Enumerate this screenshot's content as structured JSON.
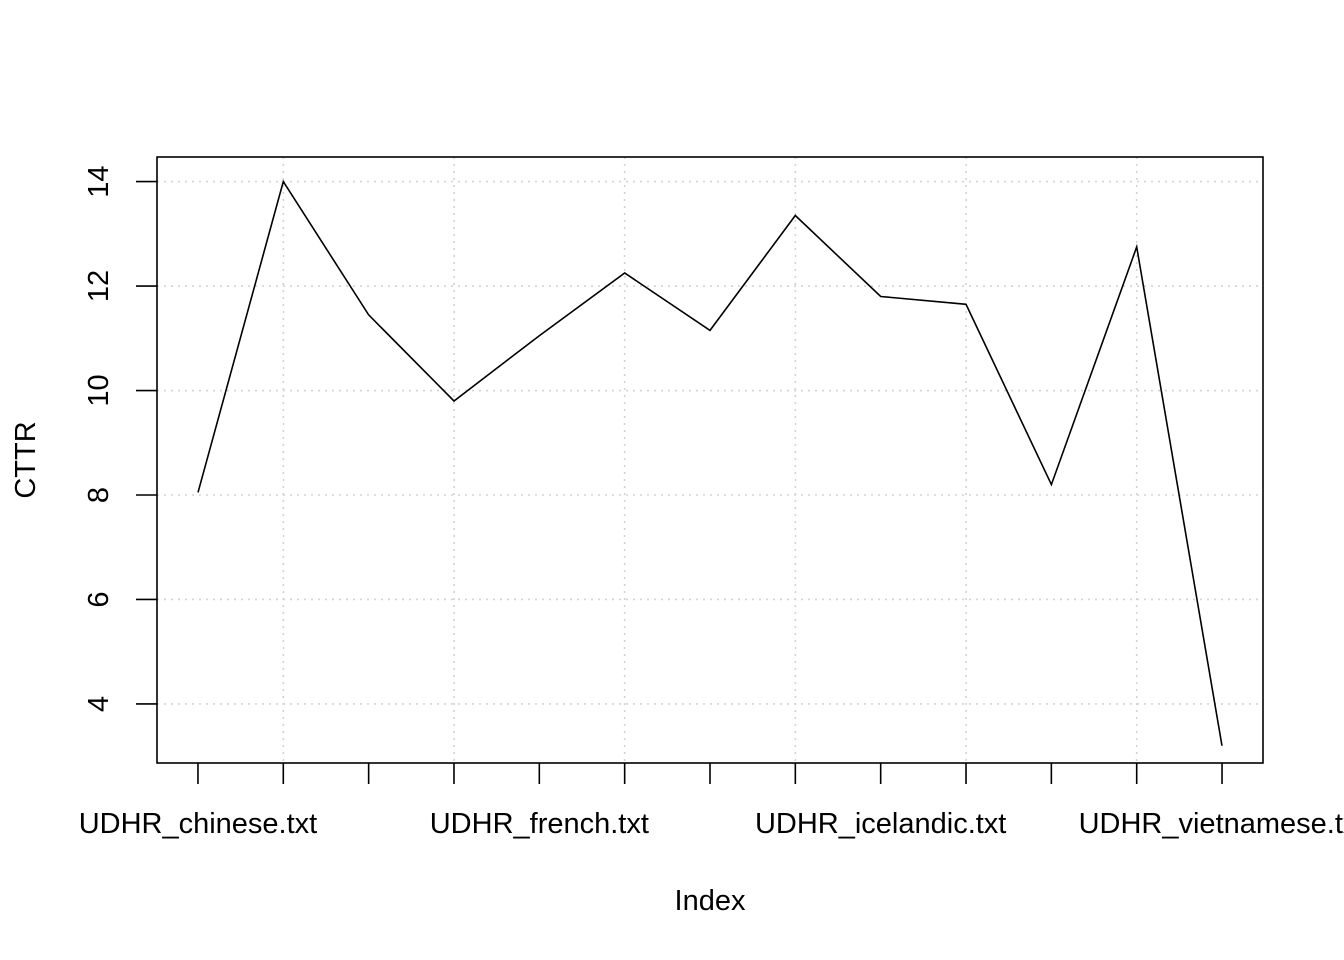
{
  "chart_data": {
    "type": "line",
    "title": "",
    "xlabel": "Index",
    "ylabel": "CTTR",
    "x": [
      1,
      2,
      3,
      4,
      5,
      6,
      7,
      8,
      9,
      10,
      11,
      12,
      13
    ],
    "y": [
      8.05,
      14.0,
      11.45,
      9.8,
      11.05,
      12.25,
      11.15,
      13.35,
      11.8,
      11.65,
      8.2,
      12.75,
      3.2
    ],
    "x_ticks": [
      1,
      2,
      3,
      4,
      5,
      6,
      7,
      8,
      9,
      10,
      11,
      12,
      13
    ],
    "x_tick_labels": [
      {
        "at": 1,
        "label": "UDHR_chinese.txt"
      },
      {
        "at": 5,
        "label": "UDHR_french.txt"
      },
      {
        "at": 9,
        "label": "UDHR_icelandic.txt"
      },
      {
        "at": 13,
        "label": "UDHR_vietnamese.txt"
      }
    ],
    "y_ticks": [
      4,
      6,
      8,
      10,
      12,
      14
    ],
    "y_tick_labels": [
      "4",
      "6",
      "8",
      "10",
      "12",
      "14"
    ],
    "xlim": [
      0.52,
      13.48
    ],
    "ylim": [
      2.87,
      14.47
    ],
    "grid": true,
    "grid_style": "dotted",
    "line_color": "#000000",
    "grid_color": "#d3d3d3"
  }
}
